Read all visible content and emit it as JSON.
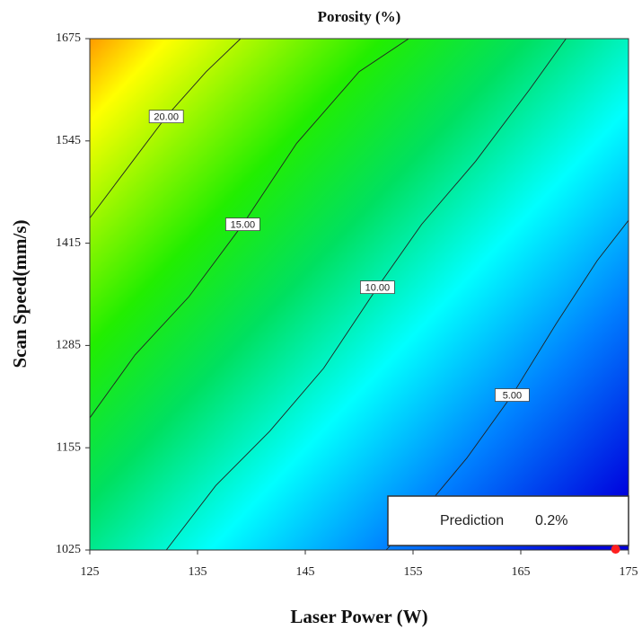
{
  "chart_data": {
    "type": "contour",
    "title": "Porosity (%)",
    "x_label": "Laser Power (W)",
    "y_label": "Scan Speed(mm/s)",
    "xlim": [
      125,
      175
    ],
    "ylim": [
      1025,
      1675
    ],
    "xticks": [
      125,
      135,
      145,
      155,
      165,
      175
    ],
    "yticks": [
      1025,
      1155,
      1285,
      1415,
      1545,
      1675
    ],
    "contours": [
      {
        "level": 20,
        "label": "20.00",
        "x": [
          125,
          128.3,
          132.1,
          135.8,
          139
        ],
        "y": [
          1447,
          1507,
          1576,
          1633,
          1675
        ]
      },
      {
        "level": 15,
        "label": "15.00",
        "x": [
          125,
          129.2,
          134.2,
          139.2,
          144.2,
          150,
          154.6
        ],
        "y": [
          1193,
          1273,
          1347,
          1439,
          1542,
          1633,
          1675
        ]
      },
      {
        "level": 10,
        "label": "10.00",
        "x": [
          132.1,
          136.7,
          141.7,
          146.7,
          151.7,
          155.8,
          160.8,
          165.8,
          169.2
        ],
        "y": [
          1025,
          1107,
          1176,
          1256,
          1359,
          1439,
          1519,
          1610,
          1675
        ]
      },
      {
        "level": 5,
        "label": "5.00",
        "x": [
          152.5,
          155.8,
          160,
          164.2,
          168.3,
          172.1,
          175
        ],
        "y": [
          1025,
          1073,
          1142,
          1222,
          1313,
          1393,
          1444
        ]
      }
    ],
    "prediction": {
      "label": "Prediction",
      "value": 0.2,
      "value_label": "0.2%",
      "x": 173.8,
      "y": 1026,
      "color": "#ff2020"
    }
  }
}
